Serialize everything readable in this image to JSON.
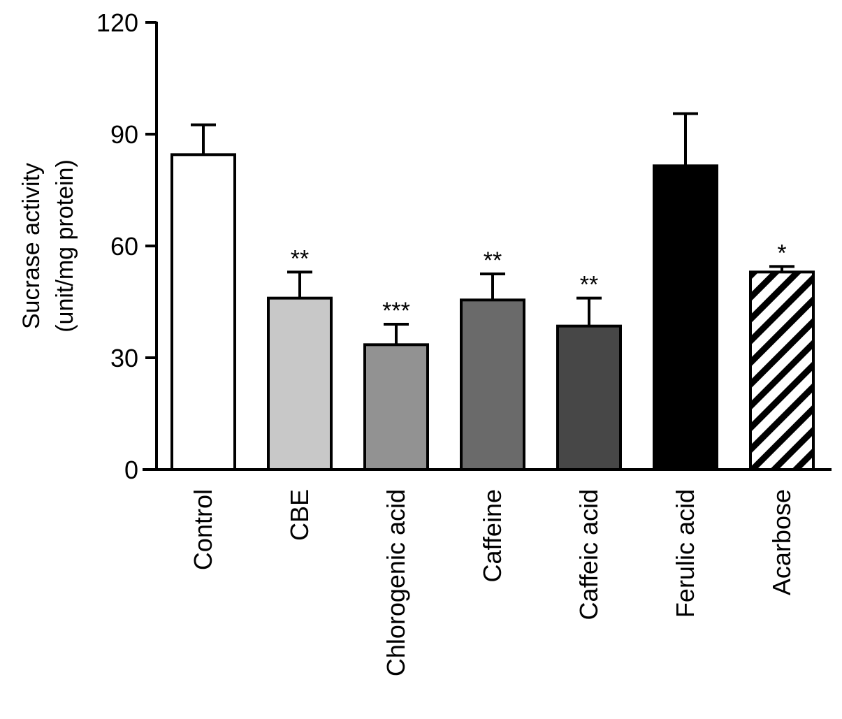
{
  "chart_data": {
    "type": "bar",
    "title": "",
    "ylabel_lines": [
      "Sucrase activity",
      "(unit/mg protein)"
    ],
    "xlabel": "",
    "ylim": [
      0,
      120
    ],
    "yticks": [
      0,
      30,
      60,
      90,
      120
    ],
    "categories": [
      "Control",
      "CBE",
      "Chlorogenic acid",
      "Caffeine",
      "Caffeic acid",
      "Ferulic acid",
      "Acarbose"
    ],
    "values": [
      84.5,
      46,
      33.5,
      45.5,
      38.5,
      81.5,
      53
    ],
    "errors": [
      8,
      7,
      5.5,
      7,
      7.5,
      14,
      1.5
    ],
    "significance": [
      "",
      "**",
      "***",
      "**",
      "**",
      "",
      "*"
    ],
    "colors": [
      "#ffffff",
      "#c8c8c8",
      "#929292",
      "#6a6a6a",
      "#474747",
      "#000000",
      "hatch"
    ],
    "grid": false,
    "legend": "none"
  }
}
